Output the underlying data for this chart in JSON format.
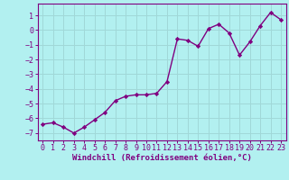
{
  "x": [
    0,
    1,
    2,
    3,
    4,
    5,
    6,
    7,
    8,
    9,
    10,
    11,
    12,
    13,
    14,
    15,
    16,
    17,
    18,
    19,
    20,
    21,
    22,
    23
  ],
  "y": [
    -6.4,
    -6.3,
    -6.6,
    -7.0,
    -6.6,
    -6.1,
    -5.6,
    -4.8,
    -4.5,
    -4.4,
    -4.4,
    -4.3,
    -3.5,
    -0.6,
    -0.7,
    -1.1,
    0.1,
    0.4,
    -0.2,
    -1.7,
    -0.8,
    0.3,
    1.2,
    0.7
  ],
  "line_color": "#800080",
  "marker": "D",
  "marker_size": 2.2,
  "linewidth": 1.0,
  "background_color": "#b2f0f0",
  "grid_color": "#a0d8d8",
  "xlabel": "Windchill (Refroidissement éolien,°C)",
  "xlabel_fontsize": 6.5,
  "xlabel_color": "#800080",
  "ylabel": "",
  "ylim": [
    -7.5,
    1.8
  ],
  "xlim": [
    -0.5,
    23.5
  ],
  "yticks": [
    -7,
    -6,
    -5,
    -4,
    -3,
    -2,
    -1,
    0,
    1
  ],
  "xticks": [
    0,
    1,
    2,
    3,
    4,
    5,
    6,
    7,
    8,
    9,
    10,
    11,
    12,
    13,
    14,
    15,
    16,
    17,
    18,
    19,
    20,
    21,
    22,
    23
  ],
  "tick_fontsize": 6.0,
  "tick_color": "#800080",
  "spine_color": "#800080"
}
